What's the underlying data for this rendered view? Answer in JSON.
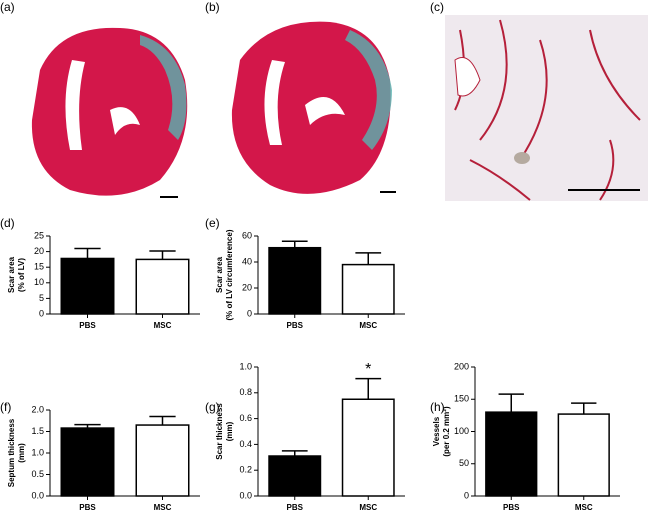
{
  "image_panels": [
    {
      "label": "(a)"
    },
    {
      "label": "(b)"
    },
    {
      "label": "(c)"
    }
  ],
  "chart_data": [
    {
      "type": "bar",
      "panel_label": "(d)",
      "y_label": [
        "Scar area",
        "(% of LV)"
      ],
      "categories": [
        "PBS",
        "MSC"
      ],
      "values": [
        17.8,
        17.5
      ],
      "errors": [
        3.2,
        2.7
      ],
      "colors": [
        "#000000",
        "#ffffff"
      ],
      "ylim": [
        0,
        25
      ],
      "yticks": [
        0,
        5,
        10,
        15,
        20,
        25
      ]
    },
    {
      "type": "bar",
      "panel_label": "(e)",
      "y_label": [
        "Scar area",
        "(% of LV circumference)"
      ],
      "categories": [
        "PBS",
        "MSC"
      ],
      "values": [
        51,
        38
      ],
      "errors": [
        5,
        9
      ],
      "colors": [
        "#000000",
        "#ffffff"
      ],
      "ylim": [
        0,
        60
      ],
      "yticks": [
        0,
        20,
        40,
        60
      ]
    },
    {
      "type": "bar",
      "panel_label": "(f)",
      "y_label": [
        "Septum thickness",
        "(mm)"
      ],
      "categories": [
        "PBS",
        "MSC"
      ],
      "values": [
        1.58,
        1.65
      ],
      "errors": [
        0.08,
        0.2
      ],
      "colors": [
        "#000000",
        "#ffffff"
      ],
      "ylim": [
        0,
        2
      ],
      "yticks": [
        {
          "value": 0,
          "label": "0.0"
        },
        0.5,
        {
          "value": 1,
          "label": "1.0"
        },
        1.5,
        {
          "value": 2,
          "label": "2.0"
        }
      ]
    },
    {
      "type": "bar",
      "panel_label": "(g)",
      "y_label": [
        "Scar thickness",
        "(mm)"
      ],
      "categories": [
        "PBS",
        "MSC"
      ],
      "values": [
        0.31,
        0.75
      ],
      "errors": [
        0.04,
        0.16
      ],
      "colors": [
        "#000000",
        "#ffffff"
      ],
      "ylim": [
        0,
        1
      ],
      "yticks": [
        {
          "value": 0,
          "label": "0.0"
        },
        0.2,
        0.4,
        0.6,
        0.8,
        {
          "value": 1,
          "label": "1.0"
        }
      ],
      "annotations": [
        {
          "text": "*",
          "category": "MSC"
        }
      ]
    },
    {
      "type": "bar",
      "panel_label": "(h)",
      "y_label": [
        "Vessels",
        "(per 0.2 mm²)"
      ],
      "categories": [
        "PBS",
        "MSC"
      ],
      "values": [
        130,
        127
      ],
      "errors": [
        28,
        17
      ],
      "colors": [
        "#000000",
        "#ffffff"
      ],
      "ylim": [
        0,
        200
      ],
      "yticks": [
        0,
        50,
        100,
        150,
        200
      ]
    }
  ]
}
